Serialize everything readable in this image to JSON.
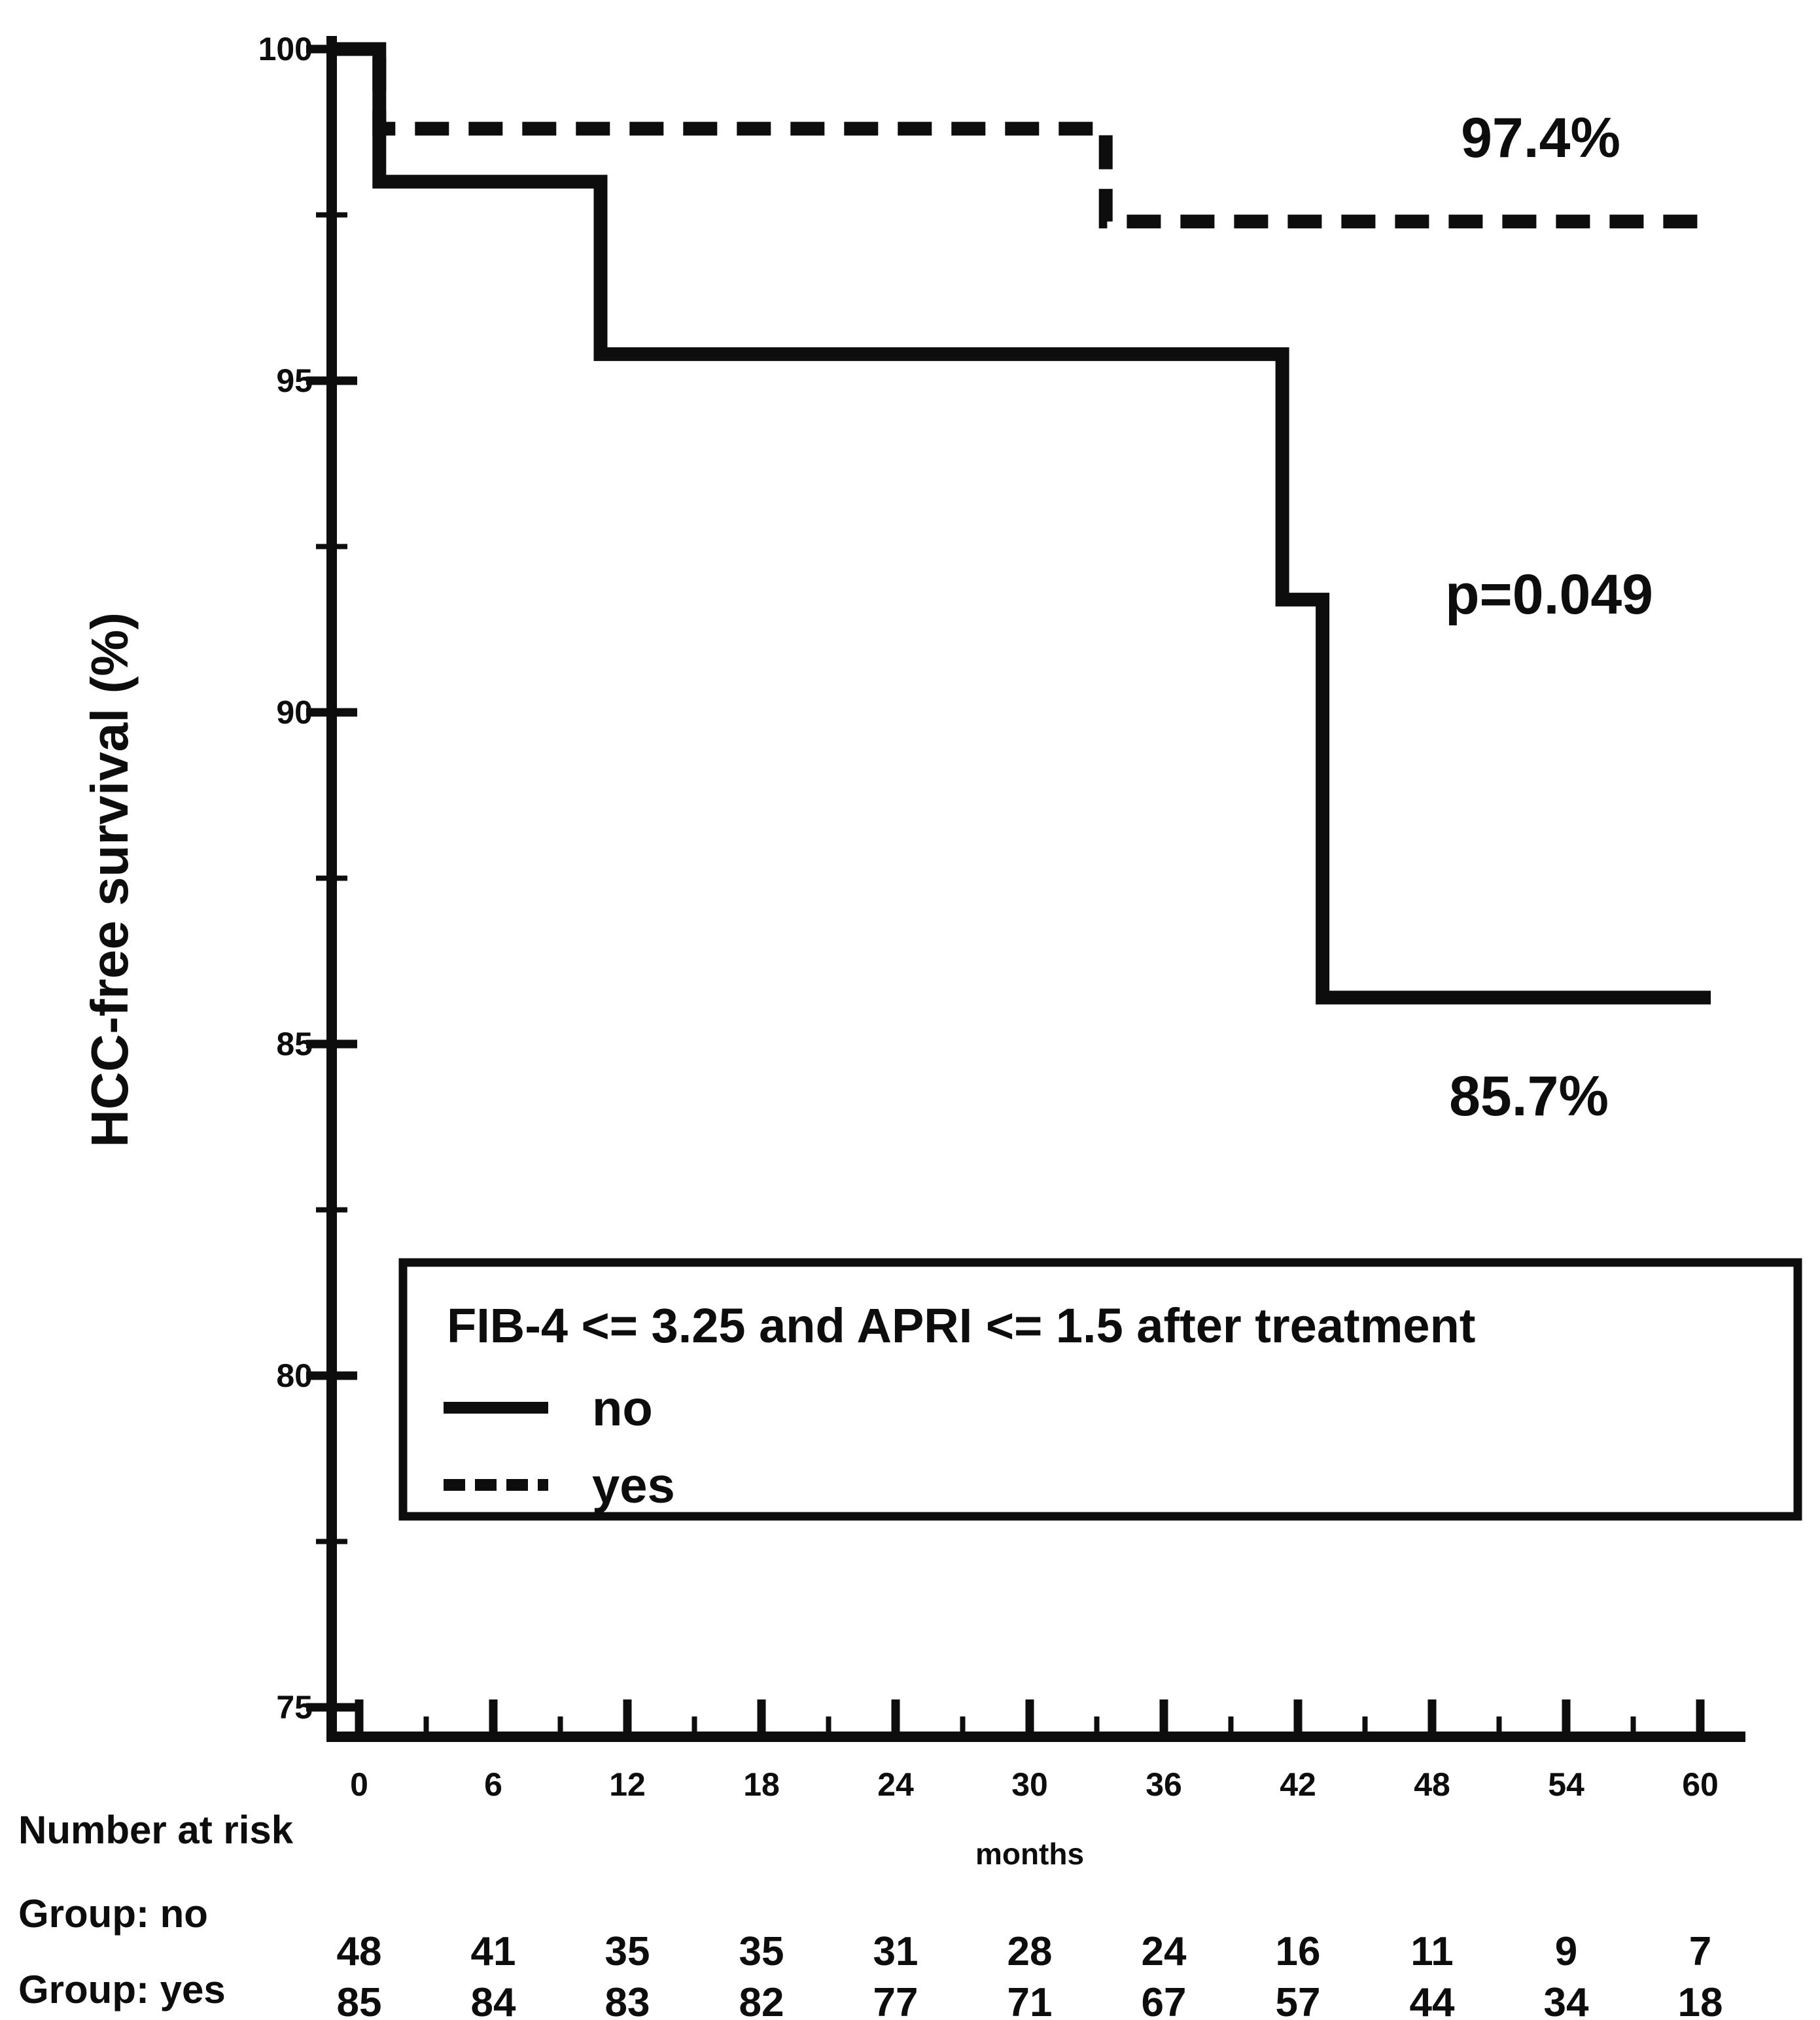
{
  "figure": {
    "y_axis_title": "HCC-free survival (%)",
    "x_axis_title": "months"
  },
  "axes": {
    "x_tick_labels": [
      "0",
      "6",
      "12",
      "18",
      "24",
      "30",
      "36",
      "42",
      "48",
      "54",
      "60"
    ],
    "y_tick_labels": [
      "100",
      "95",
      "90",
      "85",
      "80",
      "75"
    ]
  },
  "annotations": {
    "yes_survival": "97.4%",
    "p_value": "p=0.049",
    "no_survival": "85.7%"
  },
  "legend": {
    "title": "FIB-4 <= 3.25 and APRI <= 1.5 after treatment",
    "items": [
      {
        "label": "no",
        "line_style": "solid"
      },
      {
        "label": "yes",
        "line_style": "dashed"
      }
    ]
  },
  "risk_table": {
    "header": "Number at risk",
    "groups": [
      {
        "label": "Group: no",
        "counts": [
          "48",
          "41",
          "35",
          "35",
          "31",
          "28",
          "24",
          "16",
          "11",
          "9",
          "7"
        ]
      },
      {
        "label": "Group: yes",
        "counts": [
          "85",
          "84",
          "83",
          "82",
          "77",
          "71",
          "67",
          "57",
          "44",
          "34",
          "18"
        ]
      }
    ]
  },
  "colors": {
    "line": "#0d0d0d",
    "background": "#ffffff"
  },
  "chart_data": {
    "type": "line",
    "subtype": "kaplan-meier-step",
    "title": "",
    "xlabel": "months",
    "ylabel": "HCC-free survival (%)",
    "xlim": [
      0,
      60
    ],
    "ylim": [
      75,
      100
    ],
    "x_ticks": [
      0,
      6,
      12,
      18,
      24,
      30,
      36,
      42,
      48,
      54,
      60
    ],
    "y_ticks": [
      100,
      95,
      90,
      85,
      80,
      75
    ],
    "grid": false,
    "legend_position": "inside-lower-left-box",
    "series": [
      {
        "name": "no",
        "style": "solid",
        "points": [
          [
            0,
            100
          ],
          [
            0.9,
            98.0
          ],
          [
            10.8,
            95.4
          ],
          [
            41.3,
            91.7
          ],
          [
            43.1,
            85.7
          ],
          [
            60,
            85.7
          ]
        ],
        "final_label": "85.7%"
      },
      {
        "name": "yes",
        "style": "dashed",
        "points": [
          [
            0,
            100
          ],
          [
            0.9,
            98.8
          ],
          [
            33.4,
            97.4
          ],
          [
            60,
            97.4
          ]
        ],
        "final_label": "97.4%"
      }
    ],
    "p_value": "p=0.049",
    "number_at_risk": {
      "times": [
        0,
        6,
        12,
        18,
        24,
        30,
        36,
        42,
        48,
        54,
        60
      ],
      "no": [
        48,
        41,
        35,
        35,
        31,
        28,
        24,
        16,
        11,
        9,
        7
      ],
      "yes": [
        85,
        84,
        83,
        82,
        77,
        71,
        67,
        57,
        44,
        34,
        18
      ]
    }
  }
}
